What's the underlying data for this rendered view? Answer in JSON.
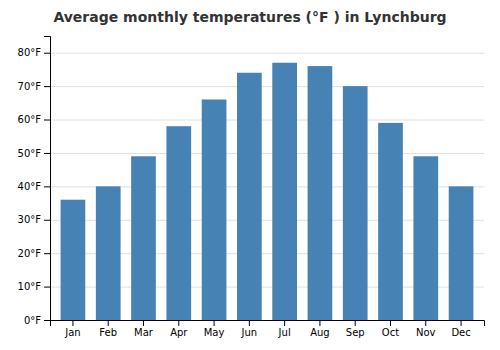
{
  "chart_data": {
    "type": "bar",
    "title": "Average monthly temperatures (°F ) in Lynchburg",
    "categories": [
      "Jan",
      "Feb",
      "Mar",
      "Apr",
      "May",
      "Jun",
      "Jul",
      "Aug",
      "Sep",
      "Oct",
      "Nov",
      "Dec"
    ],
    "values": [
      36,
      40,
      49,
      58,
      66,
      74,
      77,
      76,
      70,
      59,
      49,
      40
    ],
    "ylim": [
      0,
      85
    ],
    "yticks": [
      {
        "value": 0,
        "label": "0°F"
      },
      {
        "value": 10,
        "label": "10°F"
      },
      {
        "value": 20,
        "label": "20°F"
      },
      {
        "value": 30,
        "label": "30°F"
      },
      {
        "value": 40,
        "label": "40°F"
      },
      {
        "value": 50,
        "label": "50°F"
      },
      {
        "value": 60,
        "label": "60°F"
      },
      {
        "value": 70,
        "label": "70°F"
      },
      {
        "value": 80,
        "label": "80°F"
      }
    ],
    "grid": true
  }
}
